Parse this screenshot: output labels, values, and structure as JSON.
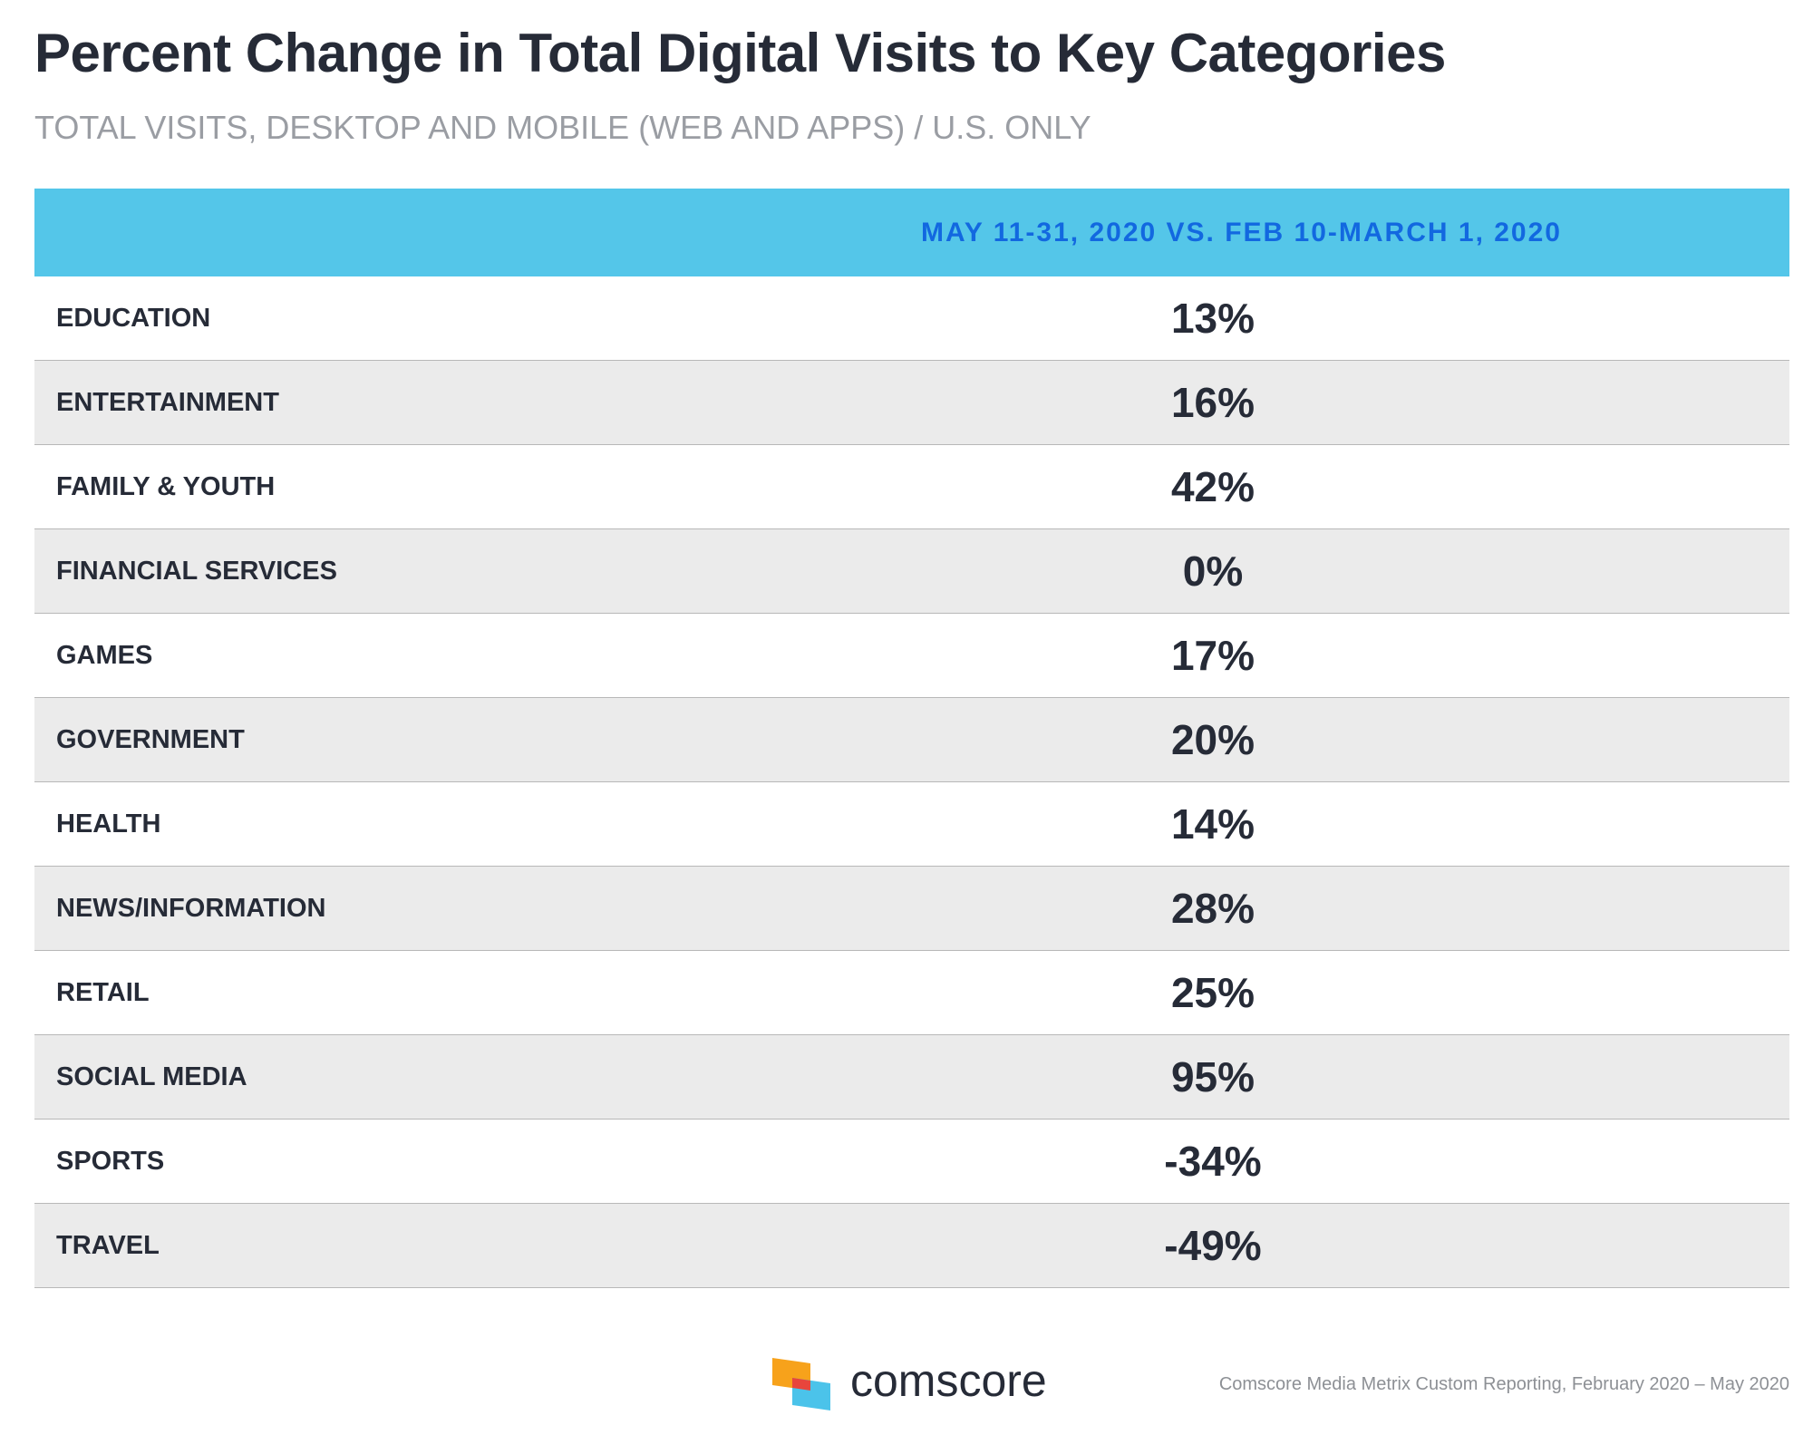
{
  "header": {
    "title": "Percent Change in Total Digital Visits to Key Categories",
    "subtitle": "TOTAL VISITS, DESKTOP AND MOBILE (WEB AND APPS) / U.S. ONLY"
  },
  "footer": {
    "brand": "comscore",
    "source": "Comscore Media Metrix Custom Reporting, February 2020 – May 2020",
    "logo_colors": [
      "#f7a21b",
      "#e8453c",
      "#4bc3ea"
    ]
  },
  "colors": {
    "header_band": "#54c6e9",
    "header_text": "#1268e0",
    "row_alt": "#ebebeb"
  },
  "chart_data": {
    "type": "table",
    "title": "Percent Change in Total Digital Visits to Key Categories",
    "subtitle": "TOTAL VISITS, DESKTOP AND MOBILE (WEB AND APPS) / U.S. ONLY",
    "column_header": "MAY 11-31, 2020 VS. FEB 10-MARCH 1, 2020",
    "rows": [
      {
        "category": "EDUCATION",
        "value": "13%"
      },
      {
        "category": "ENTERTAINMENT",
        "value": "16%"
      },
      {
        "category": "FAMILY & YOUTH",
        "value": "42%"
      },
      {
        "category": "FINANCIAL SERVICES",
        "value": "0%"
      },
      {
        "category": "GAMES",
        "value": "17%"
      },
      {
        "category": "GOVERNMENT",
        "value": "20%"
      },
      {
        "category": "HEALTH",
        "value": "14%"
      },
      {
        "category": "NEWS/INFORMATION",
        "value": "28%"
      },
      {
        "category": "RETAIL",
        "value": "25%"
      },
      {
        "category": "SOCIAL MEDIA",
        "value": "95%"
      },
      {
        "category": "SPORTS",
        "value": "-34%"
      },
      {
        "category": "TRAVEL",
        "value": "-49%"
      }
    ]
  }
}
